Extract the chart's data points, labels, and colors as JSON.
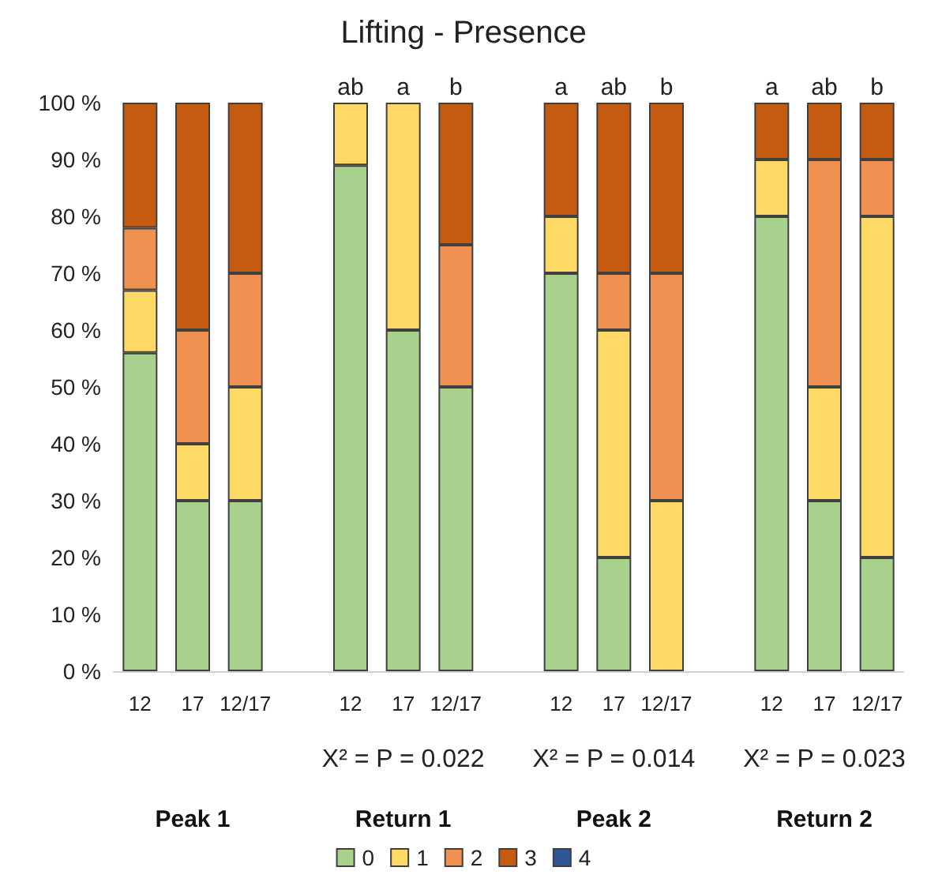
{
  "chart_data": {
    "type": "bar",
    "title": "Lifting - Presence",
    "stacked": true,
    "categories": [
      "12",
      "17",
      "12/17",
      null,
      "12",
      "17",
      "12/17",
      null,
      "12",
      "17",
      "12/17",
      null,
      "12",
      "17",
      "12/17"
    ],
    "series": [
      {
        "name": "0",
        "color": "#a9d18e",
        "values": [
          56,
          30,
          30,
          null,
          89,
          60,
          50,
          null,
          70,
          20,
          0,
          null,
          80,
          30,
          20
        ]
      },
      {
        "name": "1",
        "color": "#ffd966",
        "values": [
          11,
          10,
          20,
          null,
          11,
          40,
          0,
          null,
          10,
          40,
          30,
          null,
          10,
          20,
          60
        ]
      },
      {
        "name": "2",
        "color": "#f09152",
        "values": [
          11,
          20,
          20,
          null,
          0,
          0,
          25,
          null,
          0,
          10,
          40,
          null,
          0,
          40,
          10
        ]
      },
      {
        "name": "3",
        "color": "#c55a11",
        "values": [
          22,
          40,
          30,
          null,
          0,
          0,
          25,
          null,
          20,
          30,
          30,
          null,
          10,
          10,
          10
        ]
      },
      {
        "name": "4",
        "color": "#2f5597",
        "values": [
          0,
          0,
          0,
          null,
          0,
          0,
          0,
          null,
          0,
          0,
          0,
          null,
          0,
          0,
          0
        ]
      }
    ],
    "ylim": [
      0,
      100
    ],
    "yticks": [
      {
        "value": 0,
        "label": "0 %"
      },
      {
        "value": 10,
        "label": "10 %"
      },
      {
        "value": 20,
        "label": "20 %"
      },
      {
        "value": 30,
        "label": "30 %"
      },
      {
        "value": 40,
        "label": "40 %"
      },
      {
        "value": 50,
        "label": "50 %"
      },
      {
        "value": 60,
        "label": "60 %"
      },
      {
        "value": 70,
        "label": "70 %"
      },
      {
        "value": 80,
        "label": "80 %"
      },
      {
        "value": 90,
        "label": "90 %"
      },
      {
        "value": 100,
        "label": "100 %"
      }
    ],
    "grid": false,
    "legend": "bottom",
    "annotations": [
      "ab",
      "a",
      "b",
      "X² = P = 0.022",
      "a",
      "ab",
      "b",
      "X² = P = 0.014",
      "a",
      "ab",
      "b",
      "X² = P = 0.023",
      "Peak 1",
      "Return 1",
      "Peak 2",
      "Return 2"
    ]
  }
}
